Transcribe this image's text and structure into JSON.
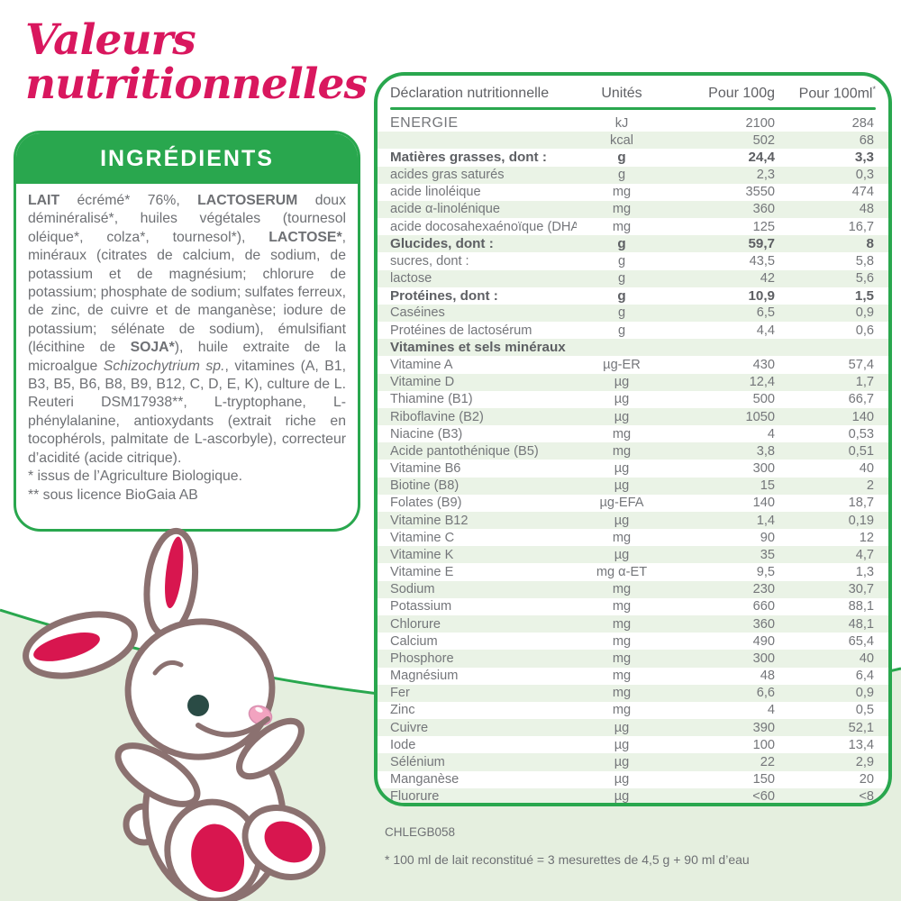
{
  "page": {
    "title_line1": "Valeurs",
    "title_line2": "nutritionnelles",
    "code": "CHLEGB058",
    "footnote": "* 100 ml de lait reconstitué = 3 mesurettes de 4,5 g + 90 ml d’eau"
  },
  "colors": {
    "green": "#29a74e",
    "pink_title": "#d9175e",
    "table_stripe": "#eaf3e6",
    "background_lower": "#e5efdf",
    "text_gray": "#74767a",
    "rabbit_outline": "#8b7170",
    "rabbit_crimson": "#d8164f",
    "rabbit_nose_pink": "#f2a3c0",
    "rabbit_eye": "#2a4b45"
  },
  "icons": {
    "rabbit_illustration": "sitting cartoon rabbit mascot, white with crimson inner ears and foot pads"
  },
  "ingredients": {
    "header": "INGRÉDIENTS",
    "segments": [
      {
        "text": "LAIT",
        "bold": true
      },
      {
        "text": " écrémé* 76%, "
      },
      {
        "text": "LACTOSERUM",
        "bold": true
      },
      {
        "text": " doux déminéralisé*, huiles végétales (tournesol oléique*, colza*, tournesol*), "
      },
      {
        "text": "LACTOSE*",
        "bold": true
      },
      {
        "text": ", minéraux (citrates de calcium, de sodium, de potassium et de magnésium; chlorure de potassium; phosphate de sodium; sulfates ferreux, de zinc, de cuivre et de manganèse; iodure de potassium; sélénate de sodium), émulsifiant (lécithine de "
      },
      {
        "text": "SOJA*",
        "bold": true
      },
      {
        "text": "), huile extraite de la microalgue "
      },
      {
        "text": "Schizochytrium sp.",
        "italic": true
      },
      {
        "text": ", vitamines (A, B1, B3, B5, B6, B8, B9, B12, C, D, E, K), culture de L. Reuteri DSM17938**, L-tryptophane, L-phénylalanine, antioxydants (extrait riche en tocophérols, palmitate de L-ascorbyle), correcteur d’acidité (acide citrique)."
      }
    ],
    "notes": [
      "* issus de l’Agriculture Biologique.",
      "** sous licence BioGaia AB"
    ]
  },
  "table": {
    "headers": {
      "declaration": "Déclaration nutritionnelle",
      "units": "Unités",
      "per100g": "Pour 100g",
      "per100ml": "Pour 100ml",
      "per100ml_sup": "*"
    },
    "rows": [
      {
        "label": "ENERGIE",
        "unit": "kJ",
        "g": "2100",
        "ml": "284",
        "caps": true
      },
      {
        "label": "",
        "unit": "kcal",
        "g": "502",
        "ml": "68"
      },
      {
        "label": "Matières grasses, dont :",
        "unit": "g",
        "g": "24,4",
        "ml": "3,3",
        "bold": true
      },
      {
        "label": "acides gras saturés",
        "unit": "g",
        "g": "2,3",
        "ml": "0,3"
      },
      {
        "label": "acide linoléique",
        "unit": "mg",
        "g": "3550",
        "ml": "474"
      },
      {
        "label": "acide α-linolénique",
        "unit": "mg",
        "g": "360",
        "ml": "48"
      },
      {
        "label": "acide docosahexaénoïque (DHA)",
        "unit": "mg",
        "g": "125",
        "ml": "16,7"
      },
      {
        "label": "Glucides, dont :",
        "unit": "g",
        "g": "59,7",
        "ml": "8",
        "bold": true
      },
      {
        "label": "sucres, dont :",
        "unit": "g",
        "g": "43,5",
        "ml": "5,8"
      },
      {
        "label": "lactose",
        "unit": "g",
        "g": "42",
        "ml": "5,6"
      },
      {
        "label": "Protéines, dont :",
        "unit": "g",
        "g": "10,9",
        "ml": "1,5",
        "bold": true
      },
      {
        "label": "Caséines",
        "unit": "g",
        "g": "6,5",
        "ml": "0,9"
      },
      {
        "label": "Protéines de lactosérum",
        "unit": "g",
        "g": "4,4",
        "ml": "0,6"
      },
      {
        "label": "Vitamines et sels minéraux",
        "unit": "",
        "g": "",
        "ml": "",
        "bold": true
      },
      {
        "label": "Vitamine A",
        "unit": "µg-ER",
        "g": "430",
        "ml": "57,4"
      },
      {
        "label": "Vitamine D",
        "unit": "µg",
        "g": "12,4",
        "ml": "1,7"
      },
      {
        "label": "Thiamine (B1)",
        "unit": "µg",
        "g": "500",
        "ml": "66,7"
      },
      {
        "label": "Riboflavine (B2)",
        "unit": "µg",
        "g": "1050",
        "ml": "140"
      },
      {
        "label": "Niacine (B3)",
        "unit": "mg",
        "g": "4",
        "ml": "0,53"
      },
      {
        "label": "Acide pantothénique (B5)",
        "unit": "mg",
        "g": "3,8",
        "ml": "0,51"
      },
      {
        "label": "Vitamine B6",
        "unit": "µg",
        "g": "300",
        "ml": "40"
      },
      {
        "label": "Biotine (B8)",
        "unit": "µg",
        "g": "15",
        "ml": "2"
      },
      {
        "label": "Folates (B9)",
        "unit": "µg-EFA",
        "g": "140",
        "ml": "18,7"
      },
      {
        "label": "Vitamine B12",
        "unit": "µg",
        "g": "1,4",
        "ml": "0,19"
      },
      {
        "label": "Vitamine C",
        "unit": "mg",
        "g": "90",
        "ml": "12"
      },
      {
        "label": "Vitamine K",
        "unit": "µg",
        "g": "35",
        "ml": "4,7"
      },
      {
        "label": "Vitamine E",
        "unit": "mg α-ET",
        "g": "9,5",
        "ml": "1,3"
      },
      {
        "label": "Sodium",
        "unit": "mg",
        "g": "230",
        "ml": "30,7"
      },
      {
        "label": "Potassium",
        "unit": "mg",
        "g": "660",
        "ml": "88,1"
      },
      {
        "label": "Chlorure",
        "unit": "mg",
        "g": "360",
        "ml": "48,1"
      },
      {
        "label": "Calcium",
        "unit": "mg",
        "g": "490",
        "ml": "65,4"
      },
      {
        "label": "Phosphore",
        "unit": "mg",
        "g": "300",
        "ml": "40"
      },
      {
        "label": "Magnésium",
        "unit": "mg",
        "g": "48",
        "ml": "6,4"
      },
      {
        "label": "Fer",
        "unit": "mg",
        "g": "6,6",
        "ml": "0,9"
      },
      {
        "label": "Zinc",
        "unit": "mg",
        "g": "4",
        "ml": "0,5"
      },
      {
        "label": "Cuivre",
        "unit": "µg",
        "g": "390",
        "ml": "52,1"
      },
      {
        "label": "Iode",
        "unit": "µg",
        "g": "100",
        "ml": "13,4"
      },
      {
        "label": "Sélénium",
        "unit": "µg",
        "g": "22",
        "ml": "2,9"
      },
      {
        "label": "Manganèse",
        "unit": "µg",
        "g": "150",
        "ml": "20"
      },
      {
        "label": "Fluorure",
        "unit": "µg",
        "g": "<60",
        "ml": "<8"
      }
    ]
  }
}
